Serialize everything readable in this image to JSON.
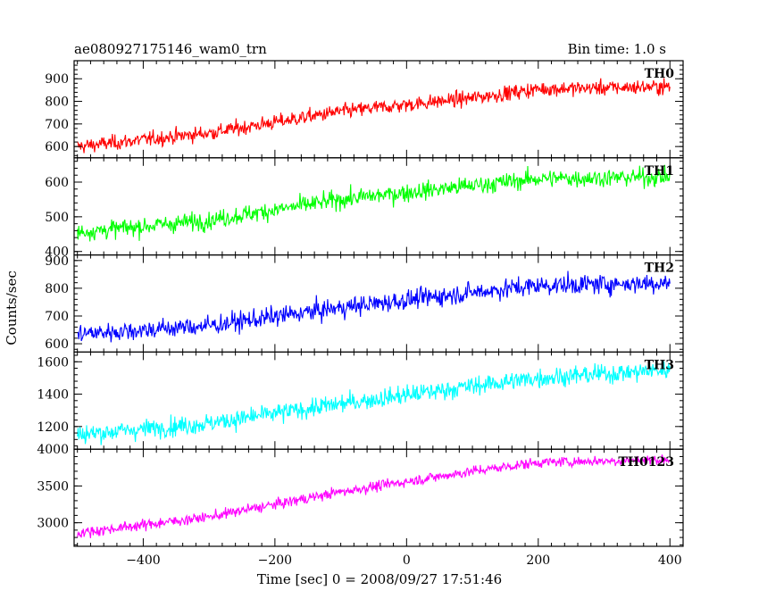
{
  "header": {
    "title": "ae080927175146_wam0_trn",
    "bin_time": "Bin time: 1.0 s"
  },
  "chart_data": {
    "type": "line",
    "title": "ae080927175146_wam0_trn",
    "xlabel": "Time [sec] 0 = 2008/09/27 17:51:46",
    "ylabel": "Counts/sec",
    "xlim": [
      -505,
      420
    ],
    "x_ticks": [
      -400,
      -200,
      0,
      200,
      400
    ],
    "x_tick_labels": [
      "−400",
      "−200",
      "0",
      "200",
      "400"
    ],
    "x_range": [
      -500,
      400
    ],
    "panels": [
      {
        "name": "TH0",
        "color": "#ff0000",
        "ylim": [
          550,
          980
        ],
        "y_ticks": [
          600,
          700,
          800,
          900
        ],
        "y_tick_labels": [
          "600",
          "700",
          "800",
          "900"
        ],
        "trend_x": [
          -500,
          -300,
          -100,
          100,
          200,
          400
        ],
        "trend_y": [
          600,
          660,
          755,
          815,
          855,
          865
        ],
        "noise": 28
      },
      {
        "name": "TH1",
        "color": "#00ff00",
        "ylim": [
          390,
          670
        ],
        "y_ticks": [
          400,
          500,
          600
        ],
        "y_tick_labels": [
          "400",
          "500",
          "600"
        ],
        "trend_x": [
          -500,
          -300,
          -100,
          100,
          200,
          400
        ],
        "trend_y": [
          455,
          490,
          550,
          590,
          610,
          615
        ],
        "noise": 22
      },
      {
        "name": "TH2",
        "color": "#0000ff",
        "ylim": [
          570,
          920
        ],
        "y_ticks": [
          600,
          700,
          800,
          900
        ],
        "y_tick_labels": [
          "600",
          "700",
          "800",
          "900"
        ],
        "trend_x": [
          -500,
          -300,
          -100,
          100,
          200,
          400
        ],
        "trend_y": [
          635,
          665,
          730,
          785,
          810,
          820
        ],
        "noise": 30
      },
      {
        "name": "TH3",
        "color": "#00ffff",
        "ylim": [
          1060,
          1660
        ],
        "y_ticks": [
          1200,
          1400,
          1600
        ],
        "y_tick_labels": [
          "1200",
          "1400",
          "1600"
        ],
        "trend_x": [
          -500,
          -300,
          -100,
          100,
          200,
          400
        ],
        "trend_y": [
          1150,
          1220,
          1340,
          1450,
          1500,
          1550
        ],
        "noise": 50
      },
      {
        "name": "TH0123",
        "color": "#ff00ff",
        "ylim": [
          2680,
          4000
        ],
        "y_ticks": [
          3000,
          3500,
          4000
        ],
        "y_tick_labels": [
          "3000",
          "3500",
          "4000"
        ],
        "trend_x": [
          -500,
          -300,
          -100,
          100,
          200,
          400
        ],
        "trend_y": [
          2860,
          3080,
          3420,
          3700,
          3820,
          3860
        ],
        "noise": 60
      }
    ]
  }
}
